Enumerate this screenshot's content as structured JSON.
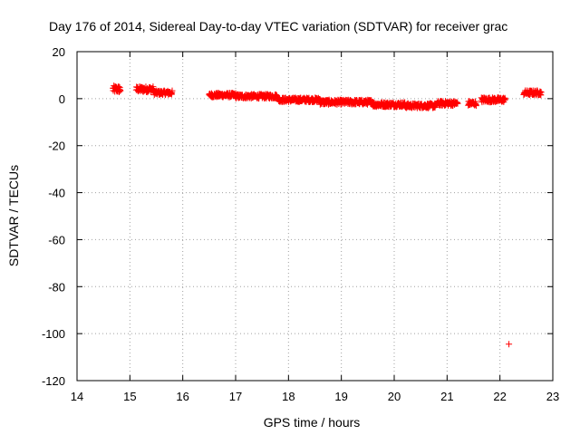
{
  "chart_data": {
    "type": "scatter",
    "title": "Day 176 of 2014, Sidereal Day-to-day VTEC variation (SDTVAR) for receiver grac",
    "xlabel": "GPS time / hours",
    "ylabel": "SDTVAR / TECUs",
    "xlim": [
      14,
      23
    ],
    "ylim": [
      -120,
      20
    ],
    "xticks": [
      14,
      15,
      16,
      17,
      18,
      19,
      20,
      21,
      22,
      23
    ],
    "yticks": [
      -120,
      -100,
      -80,
      -60,
      -40,
      -20,
      0,
      20
    ],
    "grid": true,
    "marker": "+",
    "color": "#ff0000",
    "series": [
      {
        "name": "SDTVAR",
        "segments": [
          {
            "x_start": 14.68,
            "x_end": 14.82,
            "y_center": 4.0,
            "spread": 3.0
          },
          {
            "x_start": 15.12,
            "x_end": 15.45,
            "y_center": 4.0,
            "spread": 2.4
          },
          {
            "x_start": 15.45,
            "x_end": 15.8,
            "y_center": 2.5,
            "spread": 1.8
          },
          {
            "x_start": 16.5,
            "x_end": 17.0,
            "y_center": 1.5,
            "spread": 1.8
          },
          {
            "x_start": 17.0,
            "x_end": 17.8,
            "y_center": 1.0,
            "spread": 1.8
          },
          {
            "x_start": 17.8,
            "x_end": 18.6,
            "y_center": -0.5,
            "spread": 1.8
          },
          {
            "x_start": 18.6,
            "x_end": 19.6,
            "y_center": -1.5,
            "spread": 2.0
          },
          {
            "x_start": 19.6,
            "x_end": 20.2,
            "y_center": -2.5,
            "spread": 2.0
          },
          {
            "x_start": 20.2,
            "x_end": 20.8,
            "y_center": -3.0,
            "spread": 2.0
          },
          {
            "x_start": 20.8,
            "x_end": 21.2,
            "y_center": -2.0,
            "spread": 2.0
          },
          {
            "x_start": 21.4,
            "x_end": 21.55,
            "y_center": -2.0,
            "spread": 2.0
          },
          {
            "x_start": 21.65,
            "x_end": 22.1,
            "y_center": -0.5,
            "spread": 2.0
          },
          {
            "x_start": 22.45,
            "x_end": 22.78,
            "y_center": 2.5,
            "spread": 2.0
          }
        ],
        "outliers": [
          {
            "x": 22.17,
            "y": -104.5
          }
        ]
      }
    ]
  }
}
